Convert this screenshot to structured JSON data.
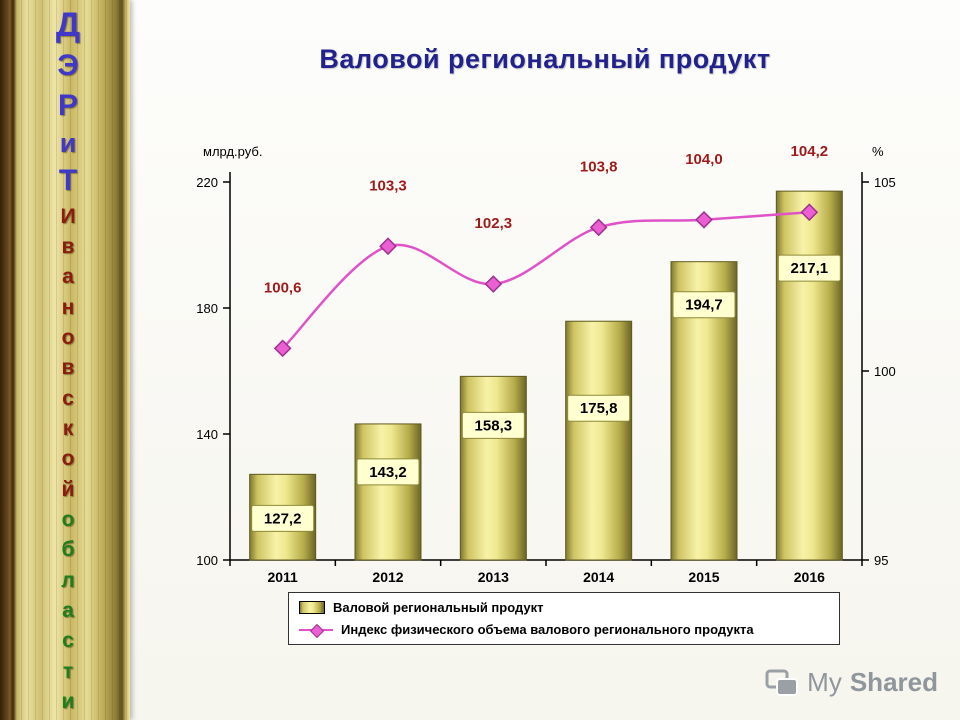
{
  "title": "Валовой региональный продукт",
  "sidebar": {
    "letters": [
      {
        "ch": "Д",
        "color": "#4038c8",
        "size": 34
      },
      {
        "ch": "Э",
        "color": "#4038c8",
        "size": 30
      },
      {
        "ch": "Р",
        "color": "#4038c8",
        "size": 30
      },
      {
        "ch": "и",
        "color": "#4038c8",
        "size": 27
      },
      {
        "ch": "Т",
        "color": "#4038c8",
        "size": 30
      },
      {
        "ch": "И",
        "color": "#8a1c10",
        "size": 21
      },
      {
        "ch": "в",
        "color": "#8a1c10",
        "size": 21
      },
      {
        "ch": "а",
        "color": "#8a1c10",
        "size": 21
      },
      {
        "ch": "н",
        "color": "#8a1c10",
        "size": 21
      },
      {
        "ch": "о",
        "color": "#8a1c10",
        "size": 21
      },
      {
        "ch": "в",
        "color": "#8a1c10",
        "size": 21
      },
      {
        "ch": "с",
        "color": "#8a1c10",
        "size": 21
      },
      {
        "ch": "к",
        "color": "#8a1c10",
        "size": 21
      },
      {
        "ch": "о",
        "color": "#8a1c10",
        "size": 21
      },
      {
        "ch": "й",
        "color": "#8a1c10",
        "size": 21
      },
      {
        "ch": "о",
        "color": "#1d7e1d",
        "size": 21
      },
      {
        "ch": "б",
        "color": "#1d7e1d",
        "size": 21
      },
      {
        "ch": "л",
        "color": "#1d7e1d",
        "size": 21
      },
      {
        "ch": "а",
        "color": "#1d7e1d",
        "size": 21
      },
      {
        "ch": "с",
        "color": "#1d7e1d",
        "size": 21
      },
      {
        "ch": "т",
        "color": "#1d7e1d",
        "size": 21
      },
      {
        "ch": "и",
        "color": "#1d7e1d",
        "size": 21
      }
    ]
  },
  "chart_data": {
    "type": "bar+line",
    "title": "Валовой региональный продукт",
    "categories": [
      "2011",
      "2012",
      "2013",
      "2014",
      "2015",
      "2016"
    ],
    "series": [
      {
        "name": "Валовой региональный продукт",
        "type": "bar",
        "axis": "left",
        "values": [
          127.2,
          143.2,
          158.3,
          175.8,
          194.7,
          217.1
        ],
        "labels": [
          "127,2",
          "143,2",
          "158,3",
          "175,8",
          "194,7",
          "217,1"
        ],
        "color": "#e9e183"
      },
      {
        "name": "Индекс физического объема валового регионального продукта",
        "type": "line",
        "axis": "right",
        "values": [
          100.6,
          103.3,
          102.3,
          103.8,
          104.0,
          104.2
        ],
        "labels": [
          "100,6",
          "103,3",
          "102,3",
          "103,8",
          "104,0",
          "104,2"
        ],
        "color": "#e052c8"
      }
    ],
    "left_axis": {
      "label": "млрд.руб.",
      "min": 100,
      "max": 220,
      "ticks": [
        100,
        140,
        180,
        220
      ]
    },
    "right_axis": {
      "label": "%",
      "min": 95,
      "max": 105,
      "ticks": [
        95,
        100,
        105
      ]
    },
    "legend_position": "bottom",
    "grid": false,
    "layout": {
      "bar_label_dy": [
        44,
        48,
        49,
        87,
        43,
        77
      ],
      "line_label_dy": -56
    }
  },
  "watermark": {
    "my": "My",
    "shared": "Shared"
  }
}
